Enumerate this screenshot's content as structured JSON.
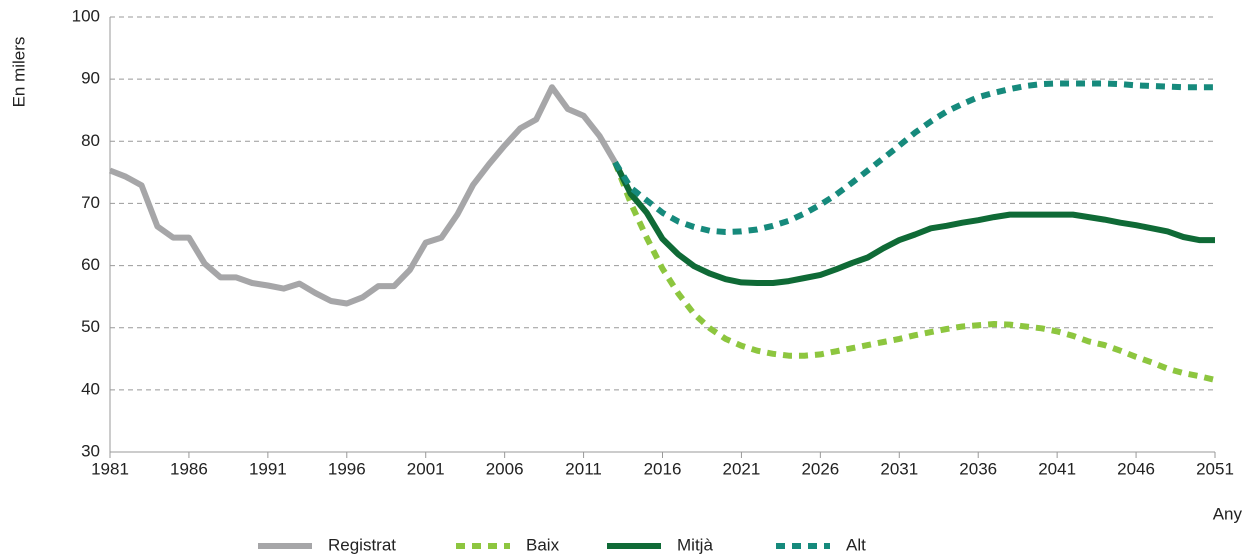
{
  "chart_data": {
    "type": "line",
    "y_label": "En milers",
    "x_label": "Any",
    "x": [
      1981,
      1982,
      1983,
      1984,
      1985,
      1986,
      1987,
      1988,
      1989,
      1990,
      1991,
      1992,
      1993,
      1994,
      1995,
      1996,
      1997,
      1998,
      1999,
      2000,
      2001,
      2002,
      2003,
      2004,
      2005,
      2006,
      2007,
      2008,
      2009,
      2010,
      2011,
      2012,
      2013,
      2014,
      2015,
      2016,
      2017,
      2018,
      2019,
      2020,
      2021,
      2022,
      2023,
      2024,
      2025,
      2026,
      2027,
      2028,
      2029,
      2030,
      2031,
      2032,
      2033,
      2034,
      2035,
      2036,
      2037,
      2038,
      2039,
      2040,
      2041,
      2042,
      2043,
      2044,
      2045,
      2046,
      2047,
      2048,
      2049,
      2050,
      2051
    ],
    "xlim": [
      1981,
      2051
    ],
    "xticks": [
      1981,
      1986,
      1991,
      1996,
      2001,
      2006,
      2011,
      2016,
      2021,
      2026,
      2031,
      2036,
      2041,
      2046,
      2051
    ],
    "ylim": [
      30,
      100
    ],
    "yticks": [
      30,
      40,
      50,
      60,
      70,
      80,
      90,
      100
    ],
    "grid": true,
    "legend": "bottom",
    "series": [
      {
        "name": "Registrat",
        "color": "#a6a6a8",
        "dashed": false,
        "values": [
          75.3,
          74.3,
          72.9,
          66.3,
          64.5,
          64.5,
          60.3,
          58.1,
          58.1,
          57.2,
          56.8,
          56.3,
          57.1,
          55.6,
          54.3,
          53.9,
          54.9,
          56.7,
          56.7,
          59.3,
          63.7,
          64.5,
          68.2,
          73.0,
          76.3,
          79.3,
          82.1,
          83.5,
          88.7,
          85.2,
          84.1,
          80.9,
          76.6,
          null,
          null,
          null,
          null,
          null,
          null,
          null,
          null,
          null,
          null,
          null,
          null,
          null,
          null,
          null,
          null,
          null,
          null,
          null,
          null,
          null,
          null,
          null,
          null,
          null,
          null,
          null,
          null,
          null,
          null,
          null,
          null,
          null,
          null,
          null,
          null,
          null,
          null
        ]
      },
      {
        "name": "Baix",
        "color": "#8dc63f",
        "dashed": true,
        "values": [
          null,
          null,
          null,
          null,
          null,
          null,
          null,
          null,
          null,
          null,
          null,
          null,
          null,
          null,
          null,
          null,
          null,
          null,
          null,
          null,
          null,
          null,
          null,
          null,
          null,
          null,
          null,
          null,
          null,
          null,
          null,
          null,
          76.6,
          70.0,
          64.5,
          59.5,
          55.5,
          52.2,
          49.9,
          48.2,
          47.1,
          46.3,
          45.8,
          45.5,
          45.5,
          45.7,
          46.2,
          46.7,
          47.2,
          47.7,
          48.2,
          48.8,
          49.3,
          49.8,
          50.2,
          50.4,
          50.6,
          50.5,
          50.2,
          49.9,
          49.4,
          48.7,
          47.8,
          47.2,
          46.3,
          45.3,
          44.4,
          43.4,
          42.7,
          42.2,
          41.6
        ]
      },
      {
        "name": "Mitjà",
        "color": "#0f6a36",
        "dashed": false,
        "values": [
          null,
          null,
          null,
          null,
          null,
          null,
          null,
          null,
          null,
          null,
          null,
          null,
          null,
          null,
          null,
          null,
          null,
          null,
          null,
          null,
          null,
          null,
          null,
          null,
          null,
          null,
          null,
          null,
          null,
          null,
          null,
          null,
          76.6,
          71.5,
          68.5,
          64.3,
          61.8,
          59.9,
          58.7,
          57.8,
          57.3,
          57.2,
          57.2,
          57.5,
          58.0,
          58.5,
          59.4,
          60.4,
          61.3,
          62.8,
          64.1,
          65.0,
          66.0,
          66.4,
          66.9,
          67.3,
          67.8,
          68.2,
          68.2,
          68.2,
          68.2,
          68.2,
          67.8,
          67.4,
          66.9,
          66.5,
          66.0,
          65.5,
          64.6,
          64.1,
          64.1
        ]
      },
      {
        "name": "Alt",
        "color": "#168a7c",
        "dashed": true,
        "values": [
          null,
          null,
          null,
          null,
          null,
          null,
          null,
          null,
          null,
          null,
          null,
          null,
          null,
          null,
          null,
          null,
          null,
          null,
          null,
          null,
          null,
          null,
          null,
          null,
          null,
          null,
          null,
          null,
          null,
          null,
          null,
          null,
          76.6,
          72.5,
          70.5,
          68.5,
          67.1,
          66.2,
          65.6,
          65.4,
          65.5,
          65.8,
          66.4,
          67.2,
          68.4,
          69.8,
          71.4,
          73.3,
          75.3,
          77.3,
          79.3,
          81.4,
          83.2,
          84.8,
          86.0,
          87.1,
          87.8,
          88.4,
          88.9,
          89.2,
          89.3,
          89.3,
          89.3,
          89.3,
          89.2,
          89.0,
          88.9,
          88.8,
          88.7,
          88.7,
          88.7
        ]
      }
    ]
  }
}
